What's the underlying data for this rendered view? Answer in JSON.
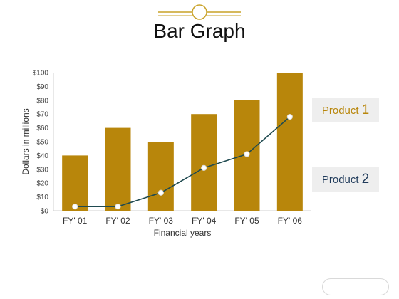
{
  "page": {
    "title": "Bar Graph"
  },
  "legend": [
    {
      "label": "Product",
      "number": "1",
      "color": "#b8860b"
    },
    {
      "label": "Product",
      "number": "2",
      "color": "#1f3a5a"
    }
  ],
  "colors": {
    "bar": "#b8860b",
    "line": "#1f4a50",
    "marker": "#ffffff",
    "decoration": "#c9a227"
  },
  "chart_data": {
    "type": "bar",
    "title": "Bar Graph",
    "xlabel": "Financial years",
    "ylabel": "Dollars in millions",
    "categories": [
      "FY' 01",
      "FY' 02",
      "FY' 03",
      "FY' 04",
      "FY' 05",
      "FY' 06"
    ],
    "ylim": [
      0,
      100
    ],
    "yticks": [
      0,
      10,
      20,
      30,
      40,
      50,
      60,
      70,
      80,
      90,
      100
    ],
    "ytick_labels": [
      "$0",
      "$10",
      "$20",
      "$30",
      "$40",
      "$50",
      "$60",
      "$70",
      "$80",
      "$90",
      "$100"
    ],
    "series": [
      {
        "name": "Product 1",
        "type": "bar",
        "values": [
          40,
          60,
          50,
          70,
          80,
          100
        ]
      },
      {
        "name": "Product 2",
        "type": "line",
        "values": [
          3,
          3,
          13,
          31,
          41,
          68
        ]
      }
    ],
    "grid": false,
    "legend_position": "right"
  }
}
